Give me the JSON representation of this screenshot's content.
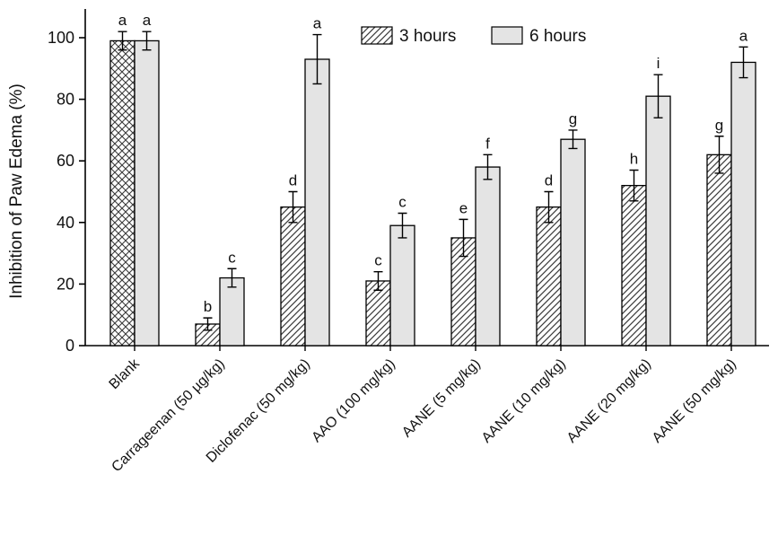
{
  "figure": {
    "background": "#ffffff",
    "axis_color": "#000000",
    "bar_fill_6h": "#e4e4e4",
    "bar_stroke": "#000000",
    "hatch_color": "#3a3a3a"
  },
  "chart_data": {
    "type": "bar",
    "title": "",
    "ylabel": "Inhibition of Paw Edema (%)",
    "xlabel": "",
    "ylim": [
      0,
      100
    ],
    "yticks": [
      0,
      20,
      40,
      60,
      80,
      100
    ],
    "grid": false,
    "legend_position": "top-center-inside",
    "categories": [
      "Blank",
      "Carrageenan (50 µg/kg)",
      "Diclofenac (50 mg/kg)",
      "AAO (100 mg/kg)",
      "AANE (5 mg/kg)",
      "AANE (10 mg/kg)",
      "AANE (20 mg/kg)",
      "AANE (50 mg/kg)"
    ],
    "series": [
      {
        "name": "3 hours",
        "style": "diagonal-hatch",
        "values": [
          99,
          7,
          45,
          21,
          35,
          45,
          52,
          62
        ],
        "errors": [
          3,
          2,
          5,
          3,
          6,
          5,
          5,
          6
        ],
        "sig_labels": [
          "a",
          "b",
          "d",
          "c",
          "e",
          "d",
          "h",
          "g"
        ]
      },
      {
        "name": "6 hours",
        "style": "solid-light-gray",
        "values": [
          99,
          22,
          93,
          39,
          58,
          67,
          81,
          92
        ],
        "errors": [
          3,
          3,
          8,
          4,
          4,
          3,
          7,
          5
        ],
        "sig_labels": [
          "a",
          "c",
          "a",
          "c",
          "f",
          "g",
          "i",
          "a"
        ]
      }
    ],
    "pattern_overrides": [
      {
        "series": 0,
        "category": 0,
        "pattern": "cross-hatch"
      }
    ]
  }
}
